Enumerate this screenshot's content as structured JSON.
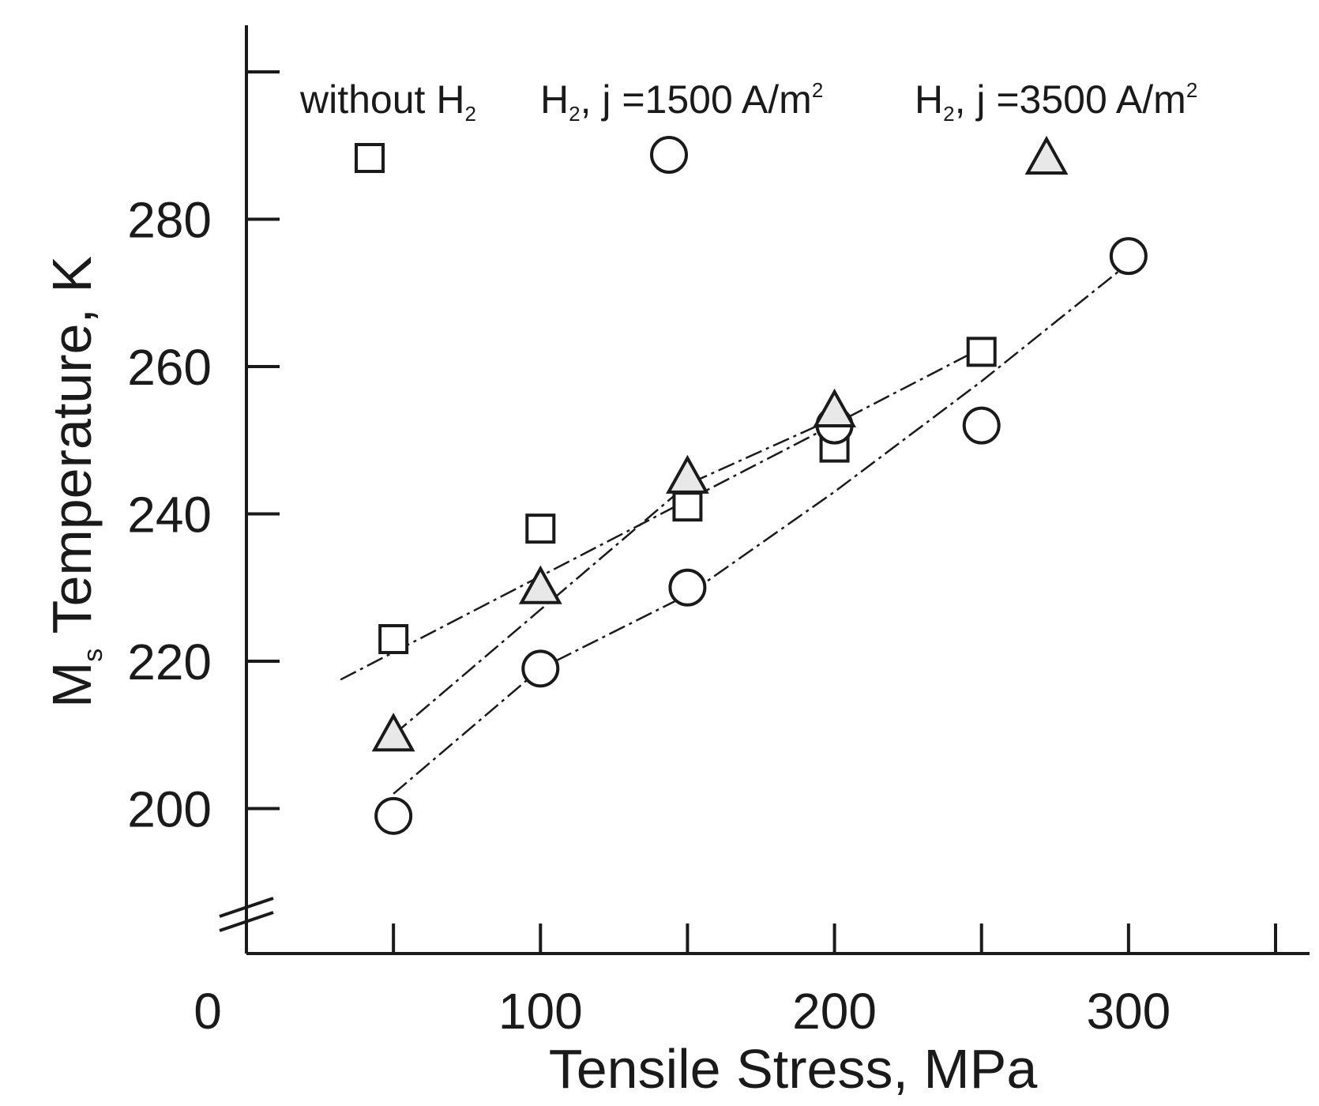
{
  "chart_data": {
    "type": "scatter",
    "title": "",
    "xlabel": "Tensile Stress, MPa",
    "ylabel_main": "M",
    "ylabel_sub": "s",
    "ylabel_rest": " Temperature, K",
    "xlim": [
      0,
      350
    ],
    "ylim": [
      180,
      300
    ],
    "x_ticks": [
      50,
      100,
      150,
      200,
      250,
      300,
      350
    ],
    "x_tick_labels": [
      {
        "value": 0,
        "text": "0"
      },
      {
        "value": 100,
        "text": "100"
      },
      {
        "value": 200,
        "text": "200"
      },
      {
        "value": 300,
        "text": "300"
      }
    ],
    "y_ticks": [
      200,
      220,
      240,
      260,
      280,
      300
    ],
    "y_tick_labels": [
      {
        "value": 200,
        "text": "200"
      },
      {
        "value": 220,
        "text": "220"
      },
      {
        "value": 240,
        "text": "240"
      },
      {
        "value": 260,
        "text": "260"
      },
      {
        "value": 280,
        "text": "280"
      }
    ],
    "axis_break": "y-axis",
    "grid": false,
    "legend_position": "top",
    "series": [
      {
        "key": "without_h2",
        "marker": "square",
        "fill": "#ffffff",
        "legend": {
          "pre": "without H",
          "sub": "2",
          "post": ""
        },
        "points": [
          [
            50,
            223
          ],
          [
            100,
            238
          ],
          [
            150,
            241
          ],
          [
            200,
            249
          ],
          [
            250,
            262
          ]
        ],
        "fit": [
          [
            32,
            217.5
          ],
          [
            250,
            262.5
          ]
        ]
      },
      {
        "key": "h2_1500",
        "marker": "circle",
        "fill": "#ffffff",
        "legend": {
          "pre": "H",
          "sub": "2",
          "post": ", j =1500 A/m",
          "sup": "2"
        },
        "points": [
          [
            50,
            199
          ],
          [
            100,
            219
          ],
          [
            150,
            230
          ],
          [
            200,
            252
          ],
          [
            250,
            252
          ],
          [
            300,
            275
          ]
        ],
        "fit": [
          [
            50,
            202
          ],
          [
            100,
            219
          ],
          [
            150,
            229
          ],
          [
            200,
            243
          ],
          [
            250,
            258
          ],
          [
            300,
            274
          ]
        ]
      },
      {
        "key": "h2_3500",
        "marker": "triangle",
        "fill": "#e8e8e8",
        "legend": {
          "pre": "H",
          "sub": "2",
          "post": ", j =3500 A/m",
          "sup": "2"
        },
        "points": [
          [
            50,
            210
          ],
          [
            100,
            230
          ],
          [
            150,
            245
          ],
          [
            200,
            254
          ]
        ],
        "fit": [
          [
            50,
            210
          ],
          [
            100,
            227
          ],
          [
            150,
            244
          ],
          [
            200,
            253
          ]
        ]
      }
    ]
  }
}
